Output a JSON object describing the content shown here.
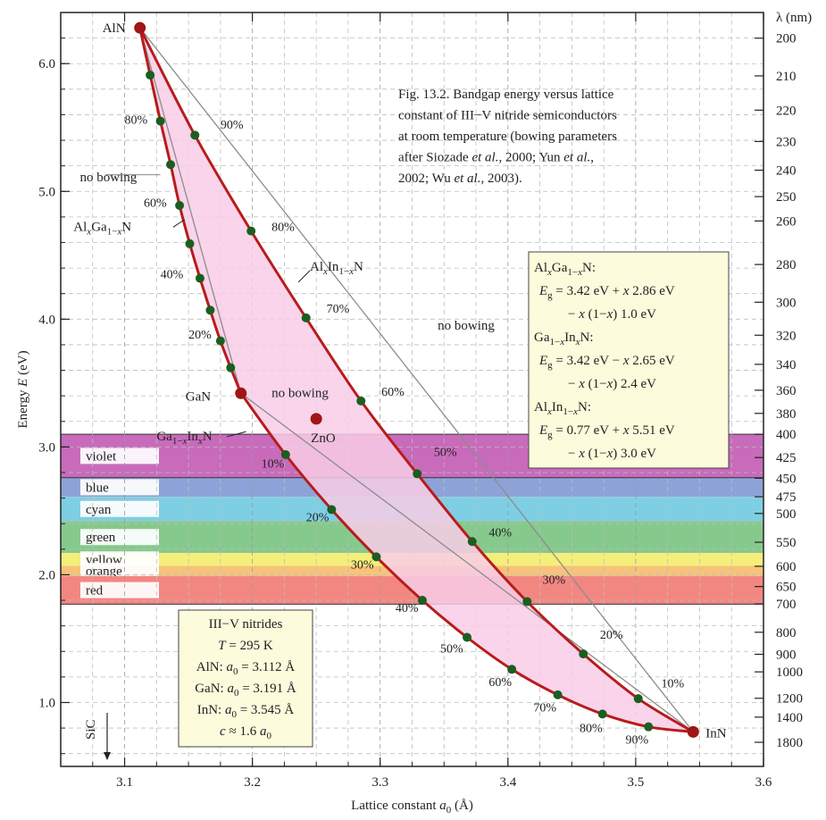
{
  "chart_data": {
    "type": "line",
    "title": "Fig. 13.2. Bandgap energy versus lattice constant of III−V nitride semiconductors at room temperature (bowing parameters after Siozade et al., 2000; Yun et al., 2002; Wu et al., 2003).",
    "title_lines": [
      "Fig. 13.2. Bandgap energy versus lattice",
      "constant of III−V nitride semiconductors",
      "at room temperature (bowing parameters",
      "after Siozade et al., 2000; Yun et al.,",
      "2002; Wu et al., 2003)."
    ],
    "xlabel": "Lattice constant a0 (Å)",
    "ylabel": "Energy E (eV)",
    "y2label": "λ (nm)",
    "xlim": [
      3.05,
      3.6
    ],
    "ylim": [
      0.5,
      6.4
    ],
    "y_scale": "linear",
    "x_ticks": [
      "3.1",
      "3.2",
      "3.3",
      "3.4",
      "3.5",
      "3.6"
    ],
    "y_ticks": [
      "1.0",
      "2.0",
      "3.0",
      "4.0",
      "5.0",
      "6.0"
    ],
    "wavelength_ticks": [
      200,
      210,
      220,
      230,
      240,
      250,
      260,
      280,
      300,
      320,
      340,
      360,
      380,
      400,
      425,
      450,
      475,
      500,
      550,
      600,
      650,
      700,
      800,
      900,
      1000,
      1200,
      1400,
      1800
    ],
    "grid": true,
    "points": [
      {
        "name": "AlN",
        "x": 3.112,
        "y": 6.28
      },
      {
        "name": "GaN",
        "x": 3.191,
        "y": 3.42
      },
      {
        "name": "InN",
        "x": 3.545,
        "y": 0.77
      },
      {
        "name": "ZnO",
        "x": 3.25,
        "y": 3.22
      }
    ],
    "series": [
      {
        "name": "AlxGa1−xN",
        "x": [
          3.112,
          3.12,
          3.128,
          3.136,
          3.143,
          3.151,
          3.159,
          3.167,
          3.175,
          3.183,
          3.191
        ],
        "y": [
          6.28,
          5.91,
          5.55,
          5.21,
          4.89,
          4.59,
          4.32,
          4.07,
          3.83,
          3.62,
          3.42
        ],
        "markers": true
      },
      {
        "name": "AlxIn1−xN",
        "x": [
          3.112,
          3.155,
          3.199,
          3.242,
          3.285,
          3.329,
          3.372,
          3.415,
          3.459,
          3.502,
          3.545
        ],
        "y": [
          6.28,
          5.44,
          4.69,
          4.01,
          3.36,
          2.79,
          2.26,
          1.79,
          1.38,
          1.03,
          0.77
        ],
        "markers": true
      },
      {
        "name": "Ga1−xInxN",
        "x": [
          3.191,
          3.226,
          3.262,
          3.297,
          3.333,
          3.368,
          3.403,
          3.439,
          3.474,
          3.51,
          3.545
        ],
        "y": [
          3.42,
          2.94,
          2.51,
          2.14,
          1.8,
          1.51,
          1.26,
          1.06,
          0.91,
          0.81,
          0.77
        ],
        "markers": true
      },
      {
        "name": "no bowing",
        "x": [
          3.112,
          3.191
        ],
        "y": [
          6.28,
          3.42
        ],
        "style": "thin-gray"
      },
      {
        "name": "no bowing",
        "x": [
          3.112,
          3.545
        ],
        "y": [
          6.28,
          0.77
        ],
        "style": "thin-gray"
      },
      {
        "name": "no bowing",
        "x": [
          3.191,
          3.545
        ],
        "y": [
          3.42,
          0.77
        ],
        "style": "thin-gray"
      }
    ],
    "composition_labels": [
      {
        "text": "80%",
        "x": 3.1,
        "y": 5.53
      },
      {
        "text": "60%",
        "x": 3.115,
        "y": 4.88
      },
      {
        "text": "40%",
        "x": 3.128,
        "y": 4.32
      },
      {
        "text": "20%",
        "x": 3.15,
        "y": 3.85
      },
      {
        "text": "90%",
        "x": 3.175,
        "y": 5.49
      },
      {
        "text": "80%",
        "x": 3.215,
        "y": 4.69
      },
      {
        "text": "70%",
        "x": 3.258,
        "y": 4.05
      },
      {
        "text": "60%",
        "x": 3.301,
        "y": 3.4
      },
      {
        "text": "50%",
        "x": 3.342,
        "y": 2.93
      },
      {
        "text": "40%",
        "x": 3.385,
        "y": 2.3
      },
      {
        "text": "30%",
        "x": 3.427,
        "y": 1.93
      },
      {
        "text": "20%",
        "x": 3.472,
        "y": 1.5
      },
      {
        "text": "10%",
        "x": 3.52,
        "y": 1.12
      },
      {
        "text": "10%",
        "x": 3.207,
        "y": 2.84
      },
      {
        "text": "20%",
        "x": 3.242,
        "y": 2.42
      },
      {
        "text": "30%",
        "x": 3.277,
        "y": 2.05
      },
      {
        "text": "40%",
        "x": 3.312,
        "y": 1.71
      },
      {
        "text": "50%",
        "x": 3.347,
        "y": 1.39
      },
      {
        "text": "60%",
        "x": 3.385,
        "y": 1.13
      },
      {
        "text": "70%",
        "x": 3.42,
        "y": 0.93
      },
      {
        "text": "80%",
        "x": 3.456,
        "y": 0.77
      },
      {
        "text": "90%",
        "x": 3.492,
        "y": 0.68
      }
    ],
    "curve_labels": [
      {
        "text": "no bowing",
        "x": 3.065,
        "y": 5.08
      },
      {
        "text": "AlxGa1−xN",
        "x": 3.06,
        "y": 4.69
      },
      {
        "text": "AlxIn1−xN",
        "x": 3.245,
        "y": 4.38
      },
      {
        "text": "no bowing",
        "x": 3.345,
        "y": 3.92
      },
      {
        "text": "no bowing",
        "x": 3.215,
        "y": 3.39
      },
      {
        "text": "Ga1−xInxN",
        "x": 3.125,
        "y": 3.05
      }
    ],
    "color_bands": [
      {
        "name": "violet",
        "e_min": 2.76,
        "e_max": 3.1,
        "color": "#c86bbb"
      },
      {
        "name": "blue",
        "e_min": 2.61,
        "e_max": 2.76,
        "color": "#8da3d8"
      },
      {
        "name": "cyan",
        "e_min": 2.42,
        "e_max": 2.61,
        "color": "#7ecfe3"
      },
      {
        "name": "green",
        "e_min": 2.17,
        "e_max": 2.42,
        "color": "#86c98c"
      },
      {
        "name": "yellow",
        "e_min": 2.07,
        "e_max": 2.17,
        "color": "#f4ee7a"
      },
      {
        "name": "orange",
        "e_min": 1.99,
        "e_max": 2.07,
        "color": "#f7c37b"
      },
      {
        "name": "red",
        "e_min": 1.77,
        "e_max": 1.99,
        "color": "#f28782"
      }
    ],
    "colors": {
      "curve": "#b71c1c",
      "marker": "#1b5e20",
      "endpoint": "#a01515",
      "fill": "#f8cde6",
      "no_bowing": "#8c8c8c",
      "box_fill": "#fcfbdc"
    },
    "formula_box": {
      "lines": [
        "AlxGa1−xN:",
        "Eg = 3.42 eV + x 2.86 eV",
        "− x (1−x) 1.0 eV",
        "Ga1−xInxN:",
        "Eg = 3.42 eV − x 2.65 eV",
        "− x (1−x) 2.4 eV",
        "AlxIn1−xN:",
        "Eg = 0.77 eV + x 5.51 eV",
        "− x (1−x) 3.0 eV"
      ]
    },
    "info_box": {
      "lines": [
        "III−V  nitrides",
        "T = 295 K",
        "AlN:  a0 = 3.112 Å",
        "GaN:  a0 = 3.191 Å",
        "InN:  a0 = 3.545 Å",
        "c ≈ 1.6 a0"
      ]
    },
    "sic_label": "SiC"
  }
}
